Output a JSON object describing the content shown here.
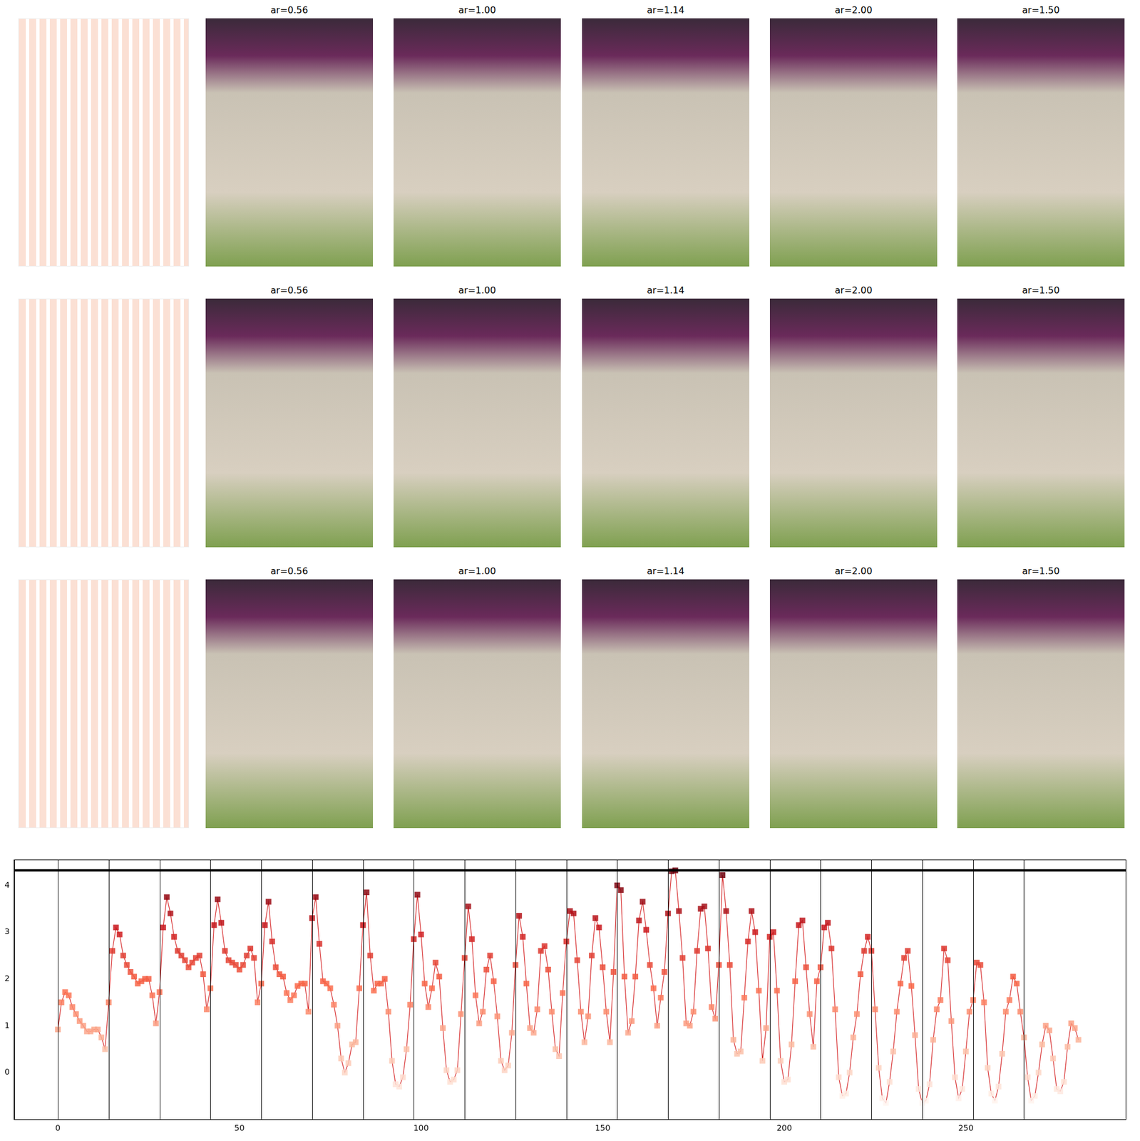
{
  "panels": {
    "titles": [
      [
        "ar=0.56",
        "ar=1.00",
        "ar=1.14",
        "ar=2.00",
        "ar=1.50"
      ],
      [
        "ar=0.56",
        "ar=1.00",
        "ar=1.14",
        "ar=2.00",
        "ar=1.50"
      ],
      [
        "ar=0.56",
        "ar=1.00",
        "ar=1.14",
        "ar=2.00",
        "ar=1.50"
      ]
    ]
  },
  "chart_data": {
    "type": "line",
    "marker": "square",
    "color": "#d62728",
    "grid": false,
    "xlim": [
      -12,
      294
    ],
    "xticks": [
      0,
      50,
      100,
      150,
      200,
      250
    ],
    "ylim": [
      -1.0,
      4.55
    ],
    "yticks": [
      0,
      1,
      2,
      3,
      4
    ],
    "vlines": [
      0,
      14,
      28,
      42,
      56,
      70,
      84,
      98,
      112,
      126,
      140,
      154,
      168,
      182,
      196,
      210,
      224,
      238,
      252,
      266
    ],
    "hline": 4.32,
    "x": [
      0,
      1,
      2,
      3,
      4,
      5,
      6,
      7,
      8,
      9,
      10,
      11,
      12,
      13,
      14,
      15,
      16,
      17,
      18,
      19,
      20,
      21,
      22,
      23,
      24,
      25,
      26,
      27,
      28,
      29,
      30,
      31,
      32,
      33,
      34,
      35,
      36,
      37,
      38,
      39,
      40,
      41,
      42,
      43,
      44,
      45,
      46,
      47,
      48,
      49,
      50,
      51,
      52,
      53,
      54,
      55,
      56,
      57,
      58,
      59,
      60,
      61,
      62,
      63,
      64,
      65,
      66,
      67,
      68,
      69,
      70,
      71,
      72,
      73,
      74,
      75,
      76,
      77,
      78,
      79,
      80,
      81,
      82,
      83,
      84,
      85,
      86,
      87,
      88,
      89,
      90,
      91,
      92,
      93,
      94,
      95,
      96,
      97,
      98,
      99,
      100,
      101,
      102,
      103,
      104,
      105,
      106,
      107,
      108,
      109,
      110,
      111,
      112,
      113,
      114,
      115,
      116,
      117,
      118,
      119,
      120,
      121,
      122,
      123,
      124,
      125,
      126,
      127,
      128,
      129,
      130,
      131,
      132,
      133,
      134,
      135,
      136,
      137,
      138,
      139,
      140,
      141,
      142,
      143,
      144,
      145,
      146,
      147,
      148,
      149,
      150,
      151,
      152,
      153,
      154,
      155,
      156,
      157,
      158,
      159,
      160,
      161,
      162,
      163,
      164,
      165,
      166,
      167,
      168,
      169,
      170,
      171,
      172,
      173,
      174,
      175,
      176,
      177,
      178,
      179,
      180,
      181,
      182,
      183,
      184,
      185,
      186,
      187,
      188,
      189,
      190,
      191,
      192,
      193,
      194,
      195,
      196,
      197,
      198,
      199,
      200,
      201,
      202,
      203,
      204,
      205,
      206,
      207,
      208,
      209,
      210,
      211,
      212,
      213,
      214,
      215,
      216,
      217,
      218,
      219,
      220,
      221,
      222,
      223,
      224,
      225,
      226,
      227,
      228,
      229,
      230,
      231,
      232,
      233,
      234,
      235,
      236,
      237,
      238,
      239,
      240,
      241,
      242,
      243,
      244,
      245,
      246,
      247,
      248,
      249,
      250,
      251,
      252,
      253,
      254,
      255,
      256,
      257,
      258,
      259,
      260,
      261,
      262,
      263,
      264,
      265,
      266,
      267,
      268,
      269,
      270,
      271,
      272,
      273,
      274,
      275,
      276,
      277,
      278,
      279,
      280,
      281
    ],
    "values": [
      0.92,
      1.5,
      1.72,
      1.65,
      1.4,
      1.25,
      1.1,
      1.0,
      0.88,
      0.88,
      0.92,
      0.92,
      0.75,
      0.5,
      1.5,
      2.6,
      3.1,
      2.95,
      2.5,
      2.3,
      2.15,
      2.05,
      1.9,
      1.95,
      2.0,
      2.0,
      1.65,
      1.05,
      1.72,
      3.1,
      3.75,
      3.4,
      2.9,
      2.6,
      2.5,
      2.4,
      2.25,
      2.35,
      2.45,
      2.5,
      2.1,
      1.35,
      1.8,
      3.15,
      3.7,
      3.2,
      2.6,
      2.4,
      2.35,
      2.3,
      2.2,
      2.3,
      2.5,
      2.65,
      2.45,
      1.5,
      1.9,
      3.15,
      3.65,
      2.8,
      2.25,
      2.1,
      2.05,
      1.7,
      1.55,
      1.65,
      1.85,
      1.9,
      1.9,
      1.3,
      3.3,
      3.75,
      2.75,
      1.95,
      1.9,
      1.8,
      1.45,
      1.0,
      0.3,
      0.0,
      0.2,
      0.6,
      0.65,
      1.8,
      3.15,
      3.85,
      2.5,
      1.75,
      1.9,
      1.9,
      2.0,
      1.3,
      0.25,
      -0.25,
      -0.3,
      -0.1,
      0.5,
      1.45,
      2.85,
      3.8,
      2.95,
      1.9,
      1.4,
      1.8,
      2.35,
      2.05,
      0.95,
      0.05,
      -0.2,
      -0.15,
      0.05,
      1.25,
      2.45,
      3.55,
      2.85,
      1.65,
      1.05,
      1.3,
      2.2,
      2.5,
      1.95,
      1.2,
      0.25,
      0.05,
      0.15,
      0.85,
      2.3,
      3.35,
      2.9,
      1.9,
      0.95,
      0.85,
      1.35,
      2.6,
      2.7,
      2.2,
      1.3,
      0.5,
      0.35,
      1.7,
      2.8,
      3.45,
      3.4,
      2.4,
      1.3,
      0.65,
      1.2,
      2.5,
      3.3,
      3.1,
      2.25,
      1.3,
      0.65,
      2.15,
      4.0,
      3.9,
      2.05,
      0.85,
      1.1,
      2.05,
      3.25,
      3.65,
      3.05,
      2.3,
      1.8,
      1.0,
      1.6,
      2.15,
      3.4,
      4.3,
      4.32,
      3.45,
      2.45,
      1.05,
      1.0,
      1.3,
      2.6,
      3.5,
      3.55,
      2.65,
      1.4,
      1.15,
      2.3,
      4.22,
      3.45,
      2.3,
      0.7,
      0.4,
      0.45,
      1.6,
      2.8,
      3.45,
      3.0,
      1.75,
      0.25,
      0.95,
      2.9,
      3.0,
      1.75,
      0.25,
      -0.2,
      -0.15,
      0.6,
      1.95,
      3.15,
      3.25,
      2.25,
      1.25,
      0.55,
      1.95,
      2.25,
      3.1,
      3.2,
      2.65,
      1.35,
      -0.1,
      -0.5,
      -0.45,
      0.0,
      0.75,
      1.25,
      2.1,
      2.6,
      2.9,
      2.6,
      1.35,
      0.1,
      -0.55,
      -0.65,
      -0.2,
      0.45,
      1.3,
      1.9,
      2.45,
      2.6,
      1.85,
      0.8,
      -0.35,
      -0.65,
      -0.6,
      -0.25,
      0.7,
      1.35,
      1.55,
      2.65,
      2.4,
      1.1,
      -0.1,
      -0.55,
      -0.35,
      0.45,
      1.3,
      1.55,
      2.35,
      2.3,
      1.5,
      0.1,
      -0.45,
      -0.6,
      -0.3,
      0.4,
      1.3,
      1.55,
      2.05,
      1.9,
      1.3,
      0.75,
      -0.1,
      -0.6,
      -0.5,
      0.0,
      0.6,
      1.0,
      0.9,
      0.3,
      -0.35,
      -0.4,
      -0.2,
      0.55,
      1.05,
      0.95,
      0.7
    ]
  }
}
